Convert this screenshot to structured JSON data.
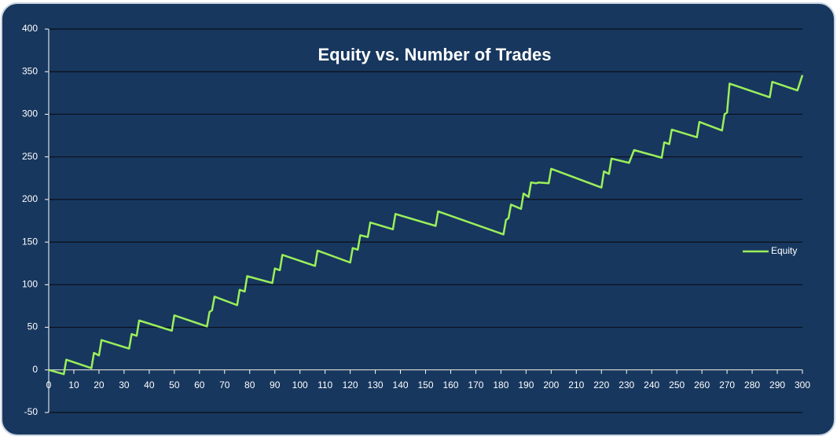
{
  "chart_data": {
    "type": "line",
    "title": "Equity vs. Number of Trades",
    "x": [
      0,
      6,
      7,
      17,
      18,
      20,
      21,
      32,
      33,
      35,
      36,
      49,
      50,
      63,
      64,
      65,
      66,
      75,
      76,
      78,
      79,
      89,
      90,
      92,
      93,
      106,
      107,
      120,
      121,
      123,
      124,
      127,
      128,
      137,
      138,
      154,
      155,
      181,
      182,
      183,
      184,
      188,
      189,
      191,
      192,
      194,
      195,
      199,
      200,
      220,
      221,
      223,
      224,
      231,
      233,
      244,
      245,
      247,
      248,
      258,
      259,
      268,
      269,
      270,
      271,
      287,
      288,
      298,
      300
    ],
    "series": [
      {
        "name": "Equity",
        "color": "#9bef5a",
        "values": [
          0,
          -5,
          12,
          2,
          20,
          17,
          35,
          25,
          42,
          40,
          58,
          46,
          64,
          51,
          68,
          70,
          86,
          76,
          94,
          92,
          110,
          102,
          119,
          117,
          135,
          122,
          140,
          126,
          143,
          141,
          158,
          156,
          173,
          165,
          183,
          169,
          186,
          159,
          176,
          178,
          194,
          189,
          207,
          203,
          220,
          219,
          220,
          219,
          236,
          214,
          233,
          230,
          248,
          243,
          258,
          249,
          267,
          265,
          282,
          273,
          291,
          281,
          300,
          302,
          336,
          320,
          338,
          328,
          346
        ]
      }
    ],
    "xlim": [
      0,
      300
    ],
    "xticks": [
      0,
      10,
      20,
      30,
      40,
      50,
      60,
      70,
      80,
      90,
      100,
      110,
      120,
      130,
      140,
      150,
      160,
      170,
      180,
      190,
      200,
      210,
      220,
      230,
      240,
      250,
      260,
      270,
      280,
      290,
      300
    ],
    "ylim": [
      -50,
      400
    ],
    "yticks": [
      -50,
      0,
      50,
      100,
      150,
      200,
      250,
      300,
      350,
      400
    ],
    "grid": true,
    "legend": "right"
  }
}
